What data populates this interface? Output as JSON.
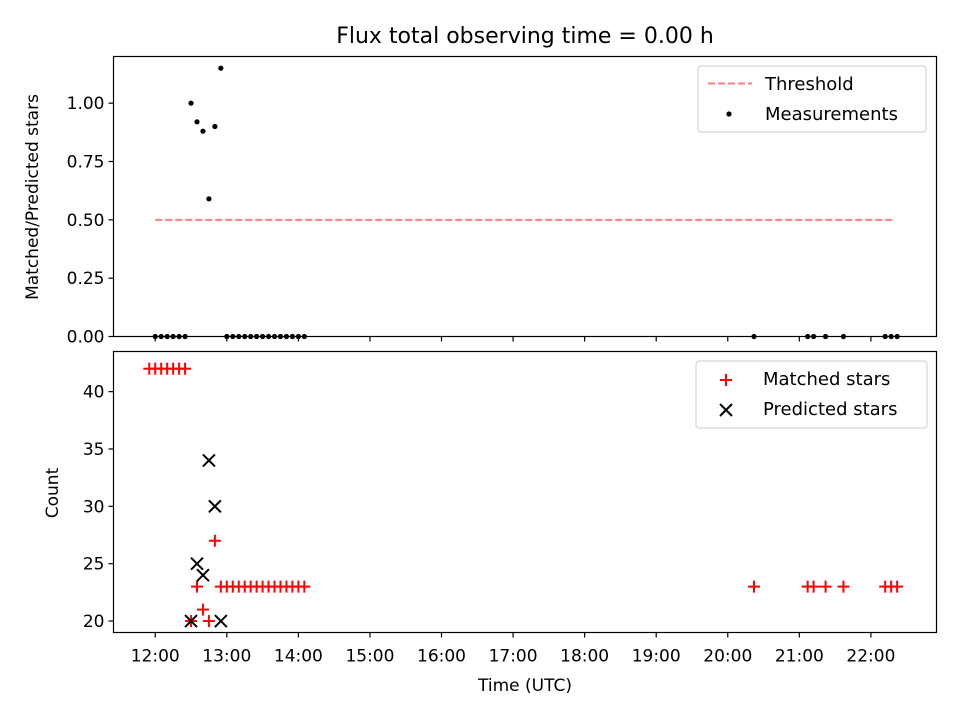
{
  "chart_data": [
    {
      "type": "scatter",
      "title": "Flux total observing time = 0.00 h",
      "xlabel": "",
      "ylabel": "Matched/Predicted stars",
      "ylim": [
        0,
        1.2
      ],
      "xlim": [
        "11:25",
        "22:55"
      ],
      "yticks": [
        "0.00",
        "0.25",
        "0.50",
        "0.75",
        "1.00"
      ],
      "legend_position": "top-right",
      "threshold": {
        "name": "Threshold",
        "x": [
          "12:00",
          "22:20"
        ],
        "y": 0.5,
        "color": "#ff7f7f",
        "style": "dashed"
      },
      "series": [
        {
          "name": "Measurements",
          "color": "#000000",
          "marker": "dot",
          "x": [
            "12:00",
            "12:05",
            "12:10",
            "12:15",
            "12:20",
            "12:25",
            "12:30",
            "12:35",
            "12:40",
            "12:45",
            "12:50",
            "12:55",
            "13:00",
            "13:05",
            "13:10",
            "13:15",
            "13:20",
            "13:25",
            "13:30",
            "13:35",
            "13:40",
            "13:45",
            "13:50",
            "13:55",
            "14:00",
            "14:05",
            "20:22",
            "21:07",
            "21:12",
            "21:22",
            "21:37",
            "22:12",
            "22:17",
            "22:22"
          ],
          "y": [
            0,
            0,
            0,
            0,
            0,
            0,
            1.0,
            0.92,
            0.88,
            0.59,
            0.9,
            1.15,
            0,
            0,
            0,
            0,
            0,
            0,
            0,
            0,
            0,
            0,
            0,
            0,
            0,
            0,
            0,
            0,
            0,
            0,
            0,
            0,
            0,
            0
          ]
        }
      ]
    },
    {
      "type": "scatter",
      "title": "",
      "xlabel": "Time (UTC)",
      "ylabel": "Count",
      "ylim": [
        19,
        43.5
      ],
      "xlim": [
        "11:25",
        "22:55"
      ],
      "yticks": [
        "20",
        "25",
        "30",
        "35",
        "40"
      ],
      "xticks": [
        "12:00",
        "13:00",
        "14:00",
        "15:00",
        "16:00",
        "17:00",
        "18:00",
        "19:00",
        "20:00",
        "21:00",
        "22:00"
      ],
      "legend_position": "top-right",
      "series": [
        {
          "name": "Matched stars",
          "color": "#ff0000",
          "marker": "plus",
          "x": [
            "11:55",
            "12:00",
            "12:05",
            "12:10",
            "12:15",
            "12:20",
            "12:25",
            "12:30",
            "12:35",
            "12:40",
            "12:45",
            "12:50",
            "12:55",
            "13:00",
            "13:05",
            "13:10",
            "13:15",
            "13:20",
            "13:25",
            "13:30",
            "13:35",
            "13:40",
            "13:45",
            "13:50",
            "13:55",
            "14:00",
            "14:05",
            "20:22",
            "21:07",
            "21:12",
            "21:22",
            "21:37",
            "22:12",
            "22:17",
            "22:22"
          ],
          "y": [
            42,
            42,
            42,
            42,
            42,
            42,
            42,
            20,
            23,
            21,
            20,
            27,
            23,
            23,
            23,
            23,
            23,
            23,
            23,
            23,
            23,
            23,
            23,
            23,
            23,
            23,
            23,
            23,
            23,
            23,
            23,
            23,
            23,
            23,
            23
          ]
        },
        {
          "name": "Predicted stars",
          "color": "#000000",
          "marker": "x",
          "x": [
            "12:30",
            "12:35",
            "12:40",
            "12:45",
            "12:50",
            "12:55"
          ],
          "y": [
            20,
            25,
            24,
            34,
            30,
            20
          ]
        }
      ]
    }
  ]
}
